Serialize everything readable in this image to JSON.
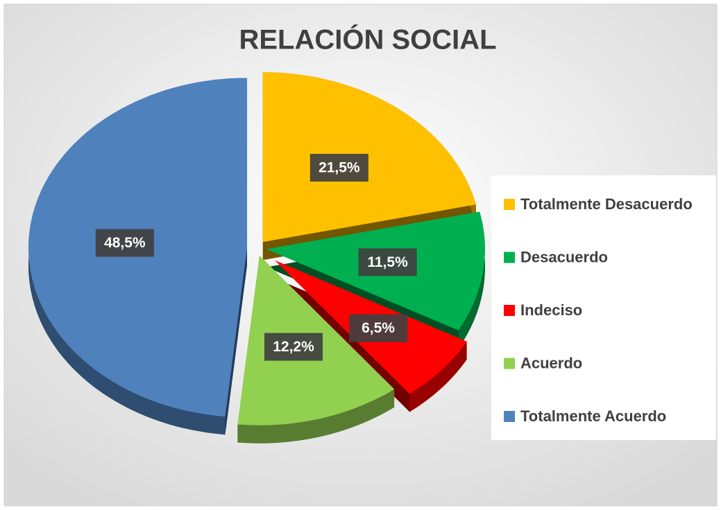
{
  "chart_data": {
    "type": "pie",
    "title": "RELACIÓN SOCIAL",
    "categories": [
      "Totalmente Desacuerdo",
      "Desacuerdo",
      "Indeciso",
      "Acuerdo",
      "Totalmente Acuerdo"
    ],
    "values": [
      21.5,
      11.5,
      6.5,
      12.2,
      48.5
    ],
    "value_labels": [
      "21,5%",
      "11,5%",
      "6,5%",
      "12,2%",
      "48,5%"
    ],
    "colors": [
      "#ffc000",
      "#00b050",
      "#ff0000",
      "#92d050",
      "#4f81bd"
    ],
    "legend": "right"
  }
}
